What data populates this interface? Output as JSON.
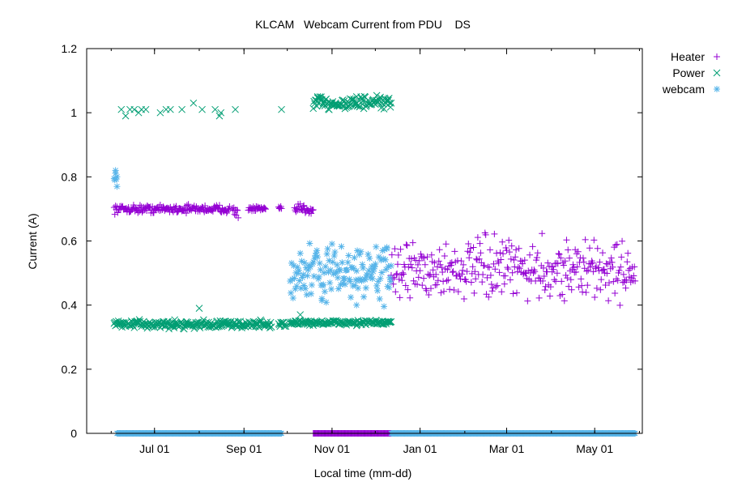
{
  "chart_data": {
    "type": "scatter",
    "title": "KLCAM   Webcam Current from PDU    DS",
    "xlabel": "Local time (mm-dd)",
    "ylabel": "Current (A)",
    "x_type": "date",
    "xlim": [
      "2023-05-15",
      "2024-06-03"
    ],
    "ylim": [
      0,
      1.2
    ],
    "y_ticks": [
      "0",
      "0.2",
      "0.4",
      "0.6",
      "0.8",
      "1",
      "1.2"
    ],
    "x_ticks": [
      {
        "date": "2023-07-01",
        "label": "Jul 01"
      },
      {
        "date": "2023-09-01",
        "label": "Sep 01"
      },
      {
        "date": "2023-11-01",
        "label": "Nov 01"
      },
      {
        "date": "2024-01-01",
        "label": "Jan 01"
      },
      {
        "date": "2024-03-01",
        "label": "Mar 01"
      },
      {
        "date": "2024-05-01",
        "label": "May 01"
      }
    ],
    "grid": false,
    "legend_position": "outside-top-right",
    "series": [
      {
        "name": "Heater",
        "marker": "+",
        "color": "#9400d3",
        "segments": [
          {
            "from": "2023-06-03",
            "to": "2023-08-22",
            "value": 0.7,
            "spread": 0.006
          },
          {
            "from": "2023-08-24",
            "to": "2023-08-28",
            "value": 0.69,
            "spread": 0.01
          },
          {
            "from": "2023-09-04",
            "to": "2023-09-16",
            "value": 0.7,
            "spread": 0.004
          },
          {
            "from": "2023-09-25",
            "to": "2023-09-27",
            "value": 0.7,
            "spread": 0.003
          },
          {
            "from": "2023-10-06",
            "to": "2023-10-19",
            "value": 0.7,
            "spread": 0.008
          },
          {
            "from": "2023-10-19",
            "to": "2023-12-12",
            "value": 0.0,
            "spread": 0
          },
          {
            "from": "2023-12-12",
            "to": "2024-05-29",
            "value": 0.51,
            "spread": 0.045
          }
        ]
      },
      {
        "name": "Power",
        "marker": "×",
        "color": "#009e73",
        "segments": [
          {
            "from": "2023-06-03",
            "to": "2023-09-20",
            "value": 0.34,
            "spread": 0.006
          },
          {
            "from": "2023-09-25",
            "to": "2023-09-30",
            "value": 0.34,
            "spread": 0.006
          },
          {
            "from": "2023-10-03",
            "to": "2023-12-12",
            "value": 0.345,
            "spread": 0.004
          },
          {
            "from": "2023-10-19",
            "to": "2023-12-12",
            "value": 1.03,
            "spread": 0.01
          }
        ],
        "points": [
          {
            "x": "2023-06-08",
            "y": 1.01
          },
          {
            "x": "2023-06-11",
            "y": 0.99
          },
          {
            "x": "2023-06-14",
            "y": 1.01
          },
          {
            "x": "2023-06-17",
            "y": 1.01
          },
          {
            "x": "2023-06-20",
            "y": 1.0
          },
          {
            "x": "2023-06-22",
            "y": 1.01
          },
          {
            "x": "2023-06-25",
            "y": 1.01
          },
          {
            "x": "2023-07-05",
            "y": 1.0
          },
          {
            "x": "2023-07-09",
            "y": 1.01
          },
          {
            "x": "2023-07-12",
            "y": 1.01
          },
          {
            "x": "2023-07-20",
            "y": 1.01
          },
          {
            "x": "2023-07-28",
            "y": 1.03
          },
          {
            "x": "2023-08-03",
            "y": 1.01
          },
          {
            "x": "2023-08-12",
            "y": 1.01
          },
          {
            "x": "2023-08-15",
            "y": 0.99
          },
          {
            "x": "2023-08-16",
            "y": 1.0
          },
          {
            "x": "2023-08-26",
            "y": 1.01
          },
          {
            "x": "2023-09-27",
            "y": 1.01
          },
          {
            "x": "2023-08-01",
            "y": 0.39
          },
          {
            "x": "2023-10-10",
            "y": 0.37
          },
          {
            "x": "2023-10-22",
            "y": 1.05
          },
          {
            "x": "2023-11-18",
            "y": 1.05
          }
        ]
      },
      {
        "name": "webcam",
        "marker": "✳",
        "color": "#56b4e9",
        "segments": [
          {
            "from": "2023-06-03",
            "to": "2023-06-05",
            "value": 0.79,
            "spread": 0.012
          },
          {
            "from": "2023-06-05",
            "to": "2023-09-27",
            "value": 0.0,
            "spread": 0
          },
          {
            "from": "2023-10-03",
            "to": "2023-12-12",
            "value": 0.5,
            "spread": 0.04
          },
          {
            "from": "2023-12-12",
            "to": "2024-05-29",
            "value": 0.0,
            "spread": 0
          }
        ],
        "points": [
          {
            "x": "2023-06-04",
            "y": 0.82
          },
          {
            "x": "2023-06-05",
            "y": 0.77
          },
          {
            "x": "2023-10-25",
            "y": 0.42
          },
          {
            "x": "2023-11-18",
            "y": 0.4
          },
          {
            "x": "2023-12-09",
            "y": 0.58
          }
        ]
      }
    ]
  }
}
